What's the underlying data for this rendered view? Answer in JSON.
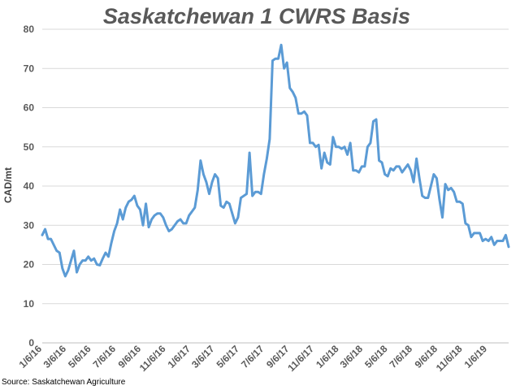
{
  "chart_data": {
    "type": "line",
    "title": "Saskatchewan 1 CWRS Basis",
    "xlabel": "",
    "ylabel": "CAD/mt",
    "ylim": [
      0,
      80
    ],
    "yticks": [
      0,
      10,
      20,
      30,
      40,
      50,
      60,
      70,
      80
    ],
    "grid": true,
    "line_color": "#5b9bd5",
    "x_start": "2016-01-06",
    "x_end": "2019-02-27",
    "x_tick_labels": [
      "1/6/16",
      "3/6/16",
      "5/6/16",
      "7/6/16",
      "9/6/16",
      "11/6/16",
      "1/6/17",
      "3/6/17",
      "5/6/17",
      "7/6/17",
      "9/6/17",
      "11/6/17",
      "1/6/18",
      "3/6/18",
      "5/6/18",
      "7/6/18",
      "9/6/18",
      "11/6/18",
      "1/6/19"
    ],
    "series": [
      {
        "values": [
          27.5,
          29,
          26.5,
          26.5,
          25,
          23.5,
          23,
          19,
          17,
          18.5,
          21,
          23.5,
          18,
          20,
          21,
          21,
          22,
          21,
          21.5,
          20,
          19.8,
          21.5,
          23,
          22,
          25.5,
          28.5,
          30.5,
          34,
          31.5,
          34.5,
          36,
          36.5,
          37.5,
          35,
          34,
          30,
          35.5,
          29.5,
          31.5,
          32.5,
          33,
          33,
          32,
          30,
          28.5,
          29,
          30,
          31,
          31.5,
          30.5,
          30.5,
          32.5,
          33.5,
          34.5,
          39,
          46.5,
          43,
          41,
          38,
          41,
          43,
          42,
          35,
          34.5,
          36,
          35.5,
          33,
          30.5,
          32,
          37,
          37.5,
          38,
          48.5,
          37.5,
          38.5,
          38.5,
          38,
          43,
          47,
          52,
          72,
          72.5,
          72.5,
          76,
          70,
          71.5,
          65,
          64,
          62.5,
          58.5,
          58.5,
          59,
          58,
          51,
          51,
          50,
          50.5,
          44.5,
          48.5,
          46,
          45.5,
          52.5,
          50,
          50,
          49.5,
          50,
          48,
          51,
          44,
          44,
          43.5,
          45,
          45,
          50,
          51,
          56.5,
          57,
          46.5,
          46,
          43,
          42.5,
          44.5,
          44,
          45,
          45,
          43.5,
          44.5,
          45.5,
          44,
          41,
          47,
          42,
          37.5,
          37,
          37,
          40,
          43,
          42,
          36.5,
          32,
          40.5,
          39,
          39.5,
          38.5,
          36,
          36,
          35.5,
          30.5,
          30,
          27,
          28,
          28,
          28,
          26,
          26.5,
          26,
          27,
          25,
          26,
          26,
          26,
          27.5,
          24.5
        ]
      }
    ],
    "source": "Source: Saskatchewan Agriculture"
  }
}
